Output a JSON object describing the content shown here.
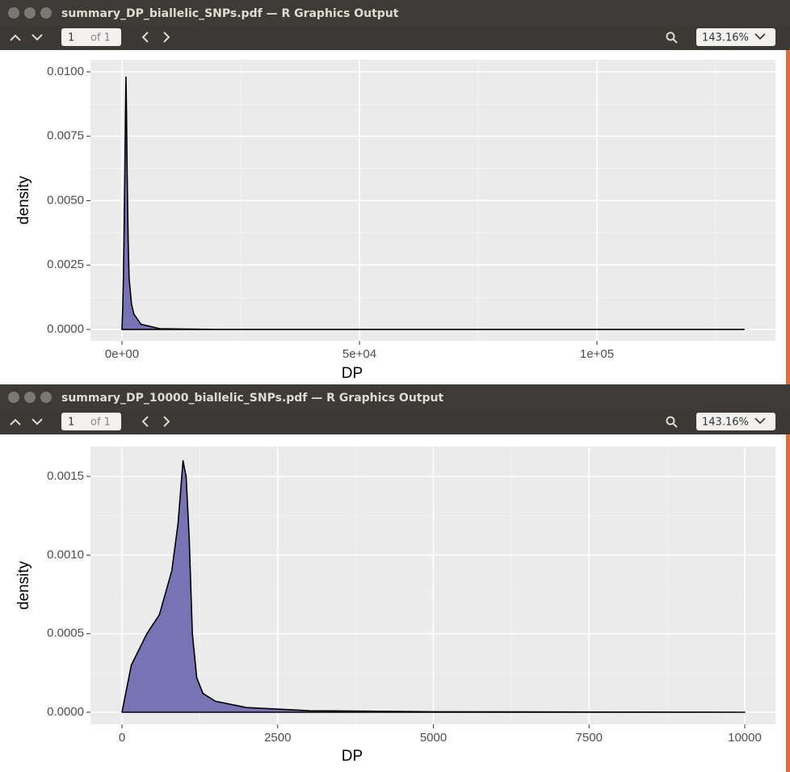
{
  "windows": [
    {
      "title": "summary_DP_biallelic_SNPs.pdf — R Graphics Output",
      "page": "1",
      "page_count": "of 1",
      "zoom": "143.16%"
    },
    {
      "title": "summary_DP_10000_biallelic_SNPs.pdf — R Graphics Output",
      "page": "1",
      "page_count": "of 1",
      "zoom": "143.16%"
    }
  ],
  "chart_data": [
    {
      "type": "area",
      "xlabel": "DP",
      "ylabel": "density",
      "color": "#7773b5",
      "x": [
        0,
        150,
        300,
        450,
        600,
        750,
        850,
        950,
        1100,
        1300,
        1500,
        2000,
        2500,
        4000,
        8000,
        20000,
        60000,
        131000
      ],
      "values": [
        0,
        0.0008,
        0.002,
        0.0038,
        0.006,
        0.0085,
        0.0098,
        0.0085,
        0.006,
        0.0035,
        0.002,
        0.001,
        0.0006,
        0.0002,
        3e-05,
        0,
        0,
        0
      ],
      "xlim": [
        -6630,
        137585
      ],
      "ylim": [
        -0.00044,
        0.01047
      ],
      "xticks": [
        {
          "value": 0,
          "label": "0e+00"
        },
        {
          "value": 50000,
          "label": "5e+04"
        },
        {
          "value": 100000,
          "label": "1e+05"
        }
      ],
      "xminorticks": [
        25000,
        75000,
        125000
      ],
      "yticks": [
        {
          "value": 0,
          "label": "0.0000"
        },
        {
          "value": 0.0025,
          "label": "0.0025"
        },
        {
          "value": 0.005,
          "label": "0.0050"
        },
        {
          "value": 0.0075,
          "label": "0.0075"
        },
        {
          "value": 0.01,
          "label": "0.0100"
        }
      ],
      "yminorticks": [
        0.00125,
        0.00375,
        0.00625,
        0.00875
      ],
      "grid": true
    },
    {
      "type": "area",
      "xlabel": "DP",
      "ylabel": "density",
      "color": "#7773b5",
      "x": [
        0,
        50,
        150,
        400,
        600,
        800,
        900,
        980,
        1030,
        1080,
        1130,
        1200,
        1300,
        1500,
        2000,
        3000,
        5000,
        10000
      ],
      "values": [
        0,
        0.0001,
        0.0003,
        0.0005,
        0.00062,
        0.0009,
        0.0012,
        0.0016,
        0.0015,
        0.0011,
        0.0005,
        0.00022,
        0.00012,
        7e-05,
        3e-05,
        1e-05,
        3e-06,
        0
      ],
      "xlim": [
        -506,
        10493
      ],
      "ylim": [
        -7.7e-05,
        0.00169
      ],
      "xticks": [
        0,
        2500,
        5000,
        7500,
        10000
      ],
      "xminorticks": [
        1250,
        3750,
        6250,
        8750
      ],
      "yticks": [
        {
          "value": 0,
          "label": "0.0000"
        },
        {
          "value": 0.0005,
          "label": "0.0005"
        },
        {
          "value": 0.001,
          "label": "0.0010"
        },
        {
          "value": 0.0015,
          "label": "0.0015"
        }
      ],
      "yminorticks": [
        0.00025,
        0.00075,
        0.00125
      ],
      "grid": true
    }
  ]
}
